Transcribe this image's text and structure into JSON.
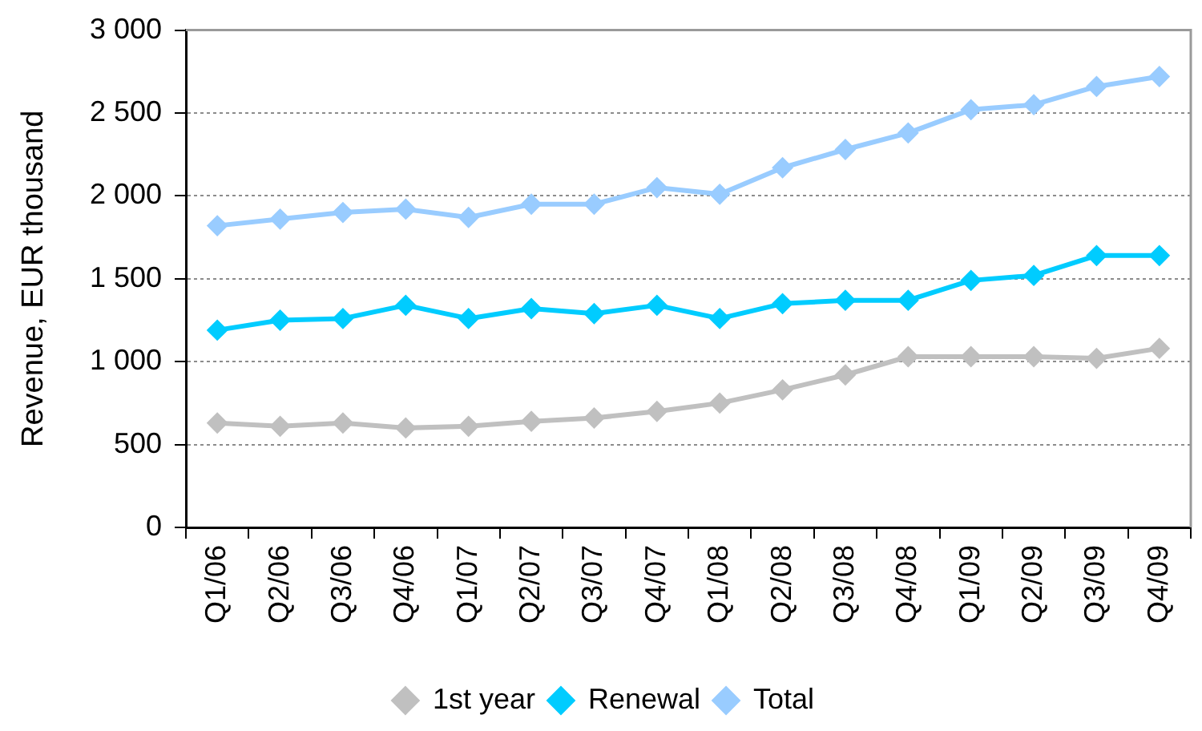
{
  "chart_data": {
    "type": "line",
    "ylabel": "Revenue, EUR thousand",
    "categories": [
      "Q1/06",
      "Q2/06",
      "Q3/06",
      "Q4/06",
      "Q1/07",
      "Q2/07",
      "Q3/07",
      "Q4/07",
      "Q1/08",
      "Q2/08",
      "Q3/08",
      "Q4/08",
      "Q1/09",
      "Q2/09",
      "Q3/09",
      "Q4/09"
    ],
    "series": [
      {
        "name": "1st year",
        "color": "#c0c0c0",
        "values": [
          630,
          610,
          630,
          600,
          610,
          640,
          660,
          700,
          750,
          830,
          920,
          1030,
          1030,
          1030,
          1020,
          1080
        ]
      },
      {
        "name": "Renewal",
        "color": "#00ccff",
        "values": [
          1190,
          1250,
          1260,
          1340,
          1260,
          1320,
          1290,
          1340,
          1260,
          1350,
          1370,
          1370,
          1490,
          1520,
          1640,
          1640
        ]
      },
      {
        "name": "Total",
        "color": "#99ccff",
        "values": [
          1820,
          1860,
          1900,
          1920,
          1870,
          1950,
          1950,
          2050,
          2010,
          2170,
          2280,
          2380,
          2520,
          2550,
          2660,
          2720
        ]
      }
    ],
    "ylim": [
      0,
      3000
    ],
    "yticks": [
      0,
      500,
      {
        "value": 1000,
        "label": "1 000"
      },
      {
        "value": 1500,
        "label": "1 500"
      },
      {
        "value": 2000,
        "label": "2 000"
      },
      {
        "value": 2500,
        "label": "2 500"
      },
      {
        "value": 3000,
        "label": "3 000"
      }
    ],
    "grid": "y",
    "legend": "bottom",
    "marker": "diamond",
    "line_style": "solid"
  }
}
